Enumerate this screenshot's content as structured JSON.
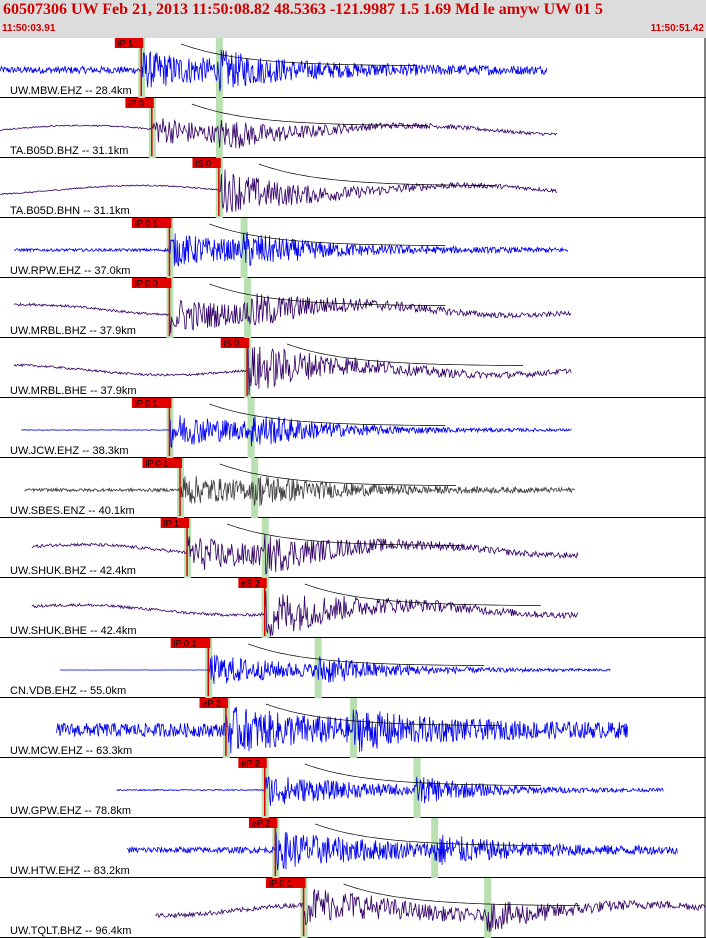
{
  "header": {
    "title": "60507306 UW Feb 21, 2013 11:50:08.82   48.5363 -121.9987  1.5 1.69 Md le amyw UW 01   5",
    "start_time": "11:50:03.91",
    "end_time": "11:50:51.42"
  },
  "colors": {
    "header_bg": "#dcdcdc",
    "header_text": "#d00000",
    "pick": "#e00000",
    "arrival_band": "#b8e0b0",
    "blue": "#0000ee",
    "purple": "#330066",
    "gray": "#404040"
  },
  "chart_data": {
    "type": "line",
    "x_axis": {
      "start": "11:50:03.91",
      "end": "11:50:51.42",
      "units": "time"
    },
    "traces": [
      {
        "label": "UW.MBW.EHZ -- 28.4km",
        "pick": "iP 1",
        "pick_t": 0.2,
        "s_t": 0.31,
        "start": 0.0,
        "end": 0.775,
        "amp": 0.55,
        "color": "blue",
        "kind": "hf",
        "noise": 0.25
      },
      {
        "label": "TA.B05D.BHZ -- 31.1km",
        "pick": "iP 0",
        "pick_t": 0.215,
        "s_t": 0.31,
        "start": 0.0,
        "end": 0.79,
        "amp": 0.5,
        "color": "purple",
        "kind": "lf",
        "noise": 0.05
      },
      {
        "label": "TA.B05D.BHN -- 31.1km",
        "pick": "iS 0",
        "pick_t": 0.31,
        "s_t": 0.31,
        "start": 0.0,
        "end": 0.79,
        "amp": 0.5,
        "color": "purple",
        "kind": "lf",
        "noise": 0.05
      },
      {
        "label": "UW.RPW.EHZ -- 37.0km",
        "pick": "iP 0 1",
        "pick_t": 0.24,
        "s_t": 0.345,
        "start": 0.02,
        "end": 0.805,
        "amp": 0.55,
        "color": "blue",
        "kind": "hf",
        "noise": 0.1
      },
      {
        "label": "UW.MRBL.BHZ -- 37.9km",
        "pick": "iP 0 0",
        "pick_t": 0.24,
        "s_t": 0.35,
        "start": 0.02,
        "end": 0.81,
        "amp": 0.6,
        "color": "purple",
        "kind": "lf",
        "noise": 0.08
      },
      {
        "label": "UW.MRBL.BHE -- 37.9km",
        "pick": "iS 0",
        "pick_t": 0.35,
        "s_t": 0.35,
        "start": 0.02,
        "end": 0.81,
        "amp": 0.55,
        "color": "purple",
        "kind": "lf",
        "noise": 0.08
      },
      {
        "label": "UW.JCW.EHZ -- 38.3km",
        "pick": "iP 0 1",
        "pick_t": 0.24,
        "s_t": 0.355,
        "start": 0.03,
        "end": 0.81,
        "amp": 0.6,
        "color": "blue",
        "kind": "hf",
        "noise": 0.02
      },
      {
        "label": "UW.SBES.ENZ -- 40.1km",
        "pick": "iP 0 1",
        "pick_t": 0.255,
        "s_t": 0.36,
        "start": 0.035,
        "end": 0.815,
        "amp": 0.5,
        "color": "gray",
        "kind": "hf",
        "noise": 0.12
      },
      {
        "label": "UW.SHUK.BHZ -- 42.4km",
        "pick": "iP 1",
        "pick_t": 0.265,
        "s_t": 0.375,
        "start": 0.045,
        "end": 0.82,
        "amp": 0.6,
        "color": "purple",
        "kind": "lf",
        "noise": 0.1
      },
      {
        "label": "UW.SHUK.BHE -- 42.4km",
        "pick": "eS 2",
        "pick_t": 0.375,
        "s_t": 0.375,
        "start": 0.045,
        "end": 0.82,
        "amp": 0.55,
        "color": "purple",
        "kind": "lf",
        "noise": 0.1
      },
      {
        "label": "CN.VDB.EHZ -- 55.0km",
        "pick": "iP 0 1",
        "pick_t": 0.295,
        "s_t": 0.45,
        "start": 0.085,
        "end": 0.865,
        "amp": 0.55,
        "color": "blue",
        "kind": "hf",
        "noise": 0.01
      },
      {
        "label": "UW.MCW.EHZ -- 63.3km",
        "pick": "eP 2",
        "pick_t": 0.32,
        "s_t": 0.5,
        "start": 0.08,
        "end": 0.89,
        "amp": 0.6,
        "color": "blue",
        "kind": "hf",
        "noise": 0.45
      },
      {
        "label": "UW.GPW.EHZ -- 78.8km",
        "pick": "eP 2",
        "pick_t": 0.375,
        "s_t": 0.59,
        "start": 0.165,
        "end": 0.94,
        "amp": 0.55,
        "color": "blue",
        "kind": "hf",
        "noise": 0.04
      },
      {
        "label": "UW.HTW.EHZ -- 83.2km",
        "pick": "eP 2",
        "pick_t": 0.39,
        "s_t": 0.615,
        "start": 0.18,
        "end": 0.96,
        "amp": 0.6,
        "color": "blue",
        "kind": "hf",
        "noise": 0.2
      },
      {
        "label": "UW.TQLT.BHZ -- 96.4km",
        "pick": "iP 0 1",
        "pick_t": 0.43,
        "s_t": 0.69,
        "start": 0.22,
        "end": 1.0,
        "amp": 0.6,
        "color": "purple",
        "kind": "lf",
        "noise": 0.15
      }
    ]
  }
}
